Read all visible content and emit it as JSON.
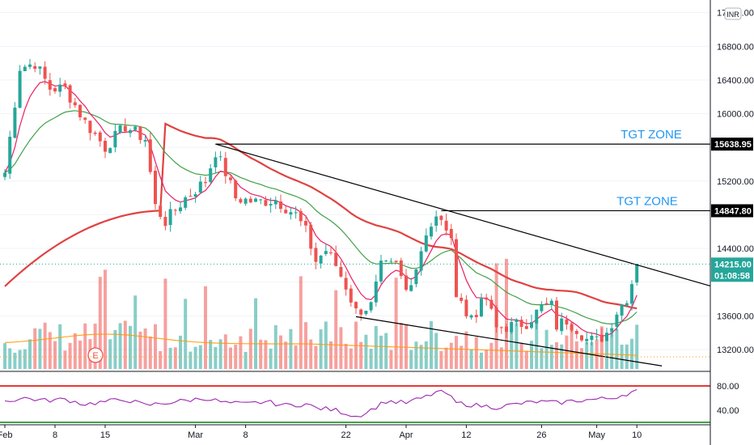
{
  "currency_badge": "INR",
  "chart_data": [
    {
      "type": "candlestick",
      "price_axis": {
        "range": [
          12950,
          17350
        ],
        "ticks": [
          "17200.00",
          "16800.00",
          "16400.00",
          "16000.00",
          "15200.00",
          "14400.00",
          "13600.00",
          "13200.00"
        ]
      },
      "time_axis": {
        "labels": [
          "Feb",
          "8",
          "15",
          "Mar",
          "8",
          "22",
          "Apr",
          "12",
          "26",
          "May",
          "10"
        ]
      },
      "last_price": "14215.00",
      "countdown": "01:08:58",
      "tgt_zones": [
        {
          "label": "TGT ZONE",
          "price": 15638.95,
          "price_label": "15638.95"
        },
        {
          "label": "TGT ZONE",
          "price": 14847.8,
          "price_label": "14847.80"
        }
      ],
      "trendlines": [
        {
          "name": "upper",
          "from": [
            42,
            15638.95
          ],
          "to": [
            140,
            13966
          ]
        },
        {
          "name": "lower",
          "from": [
            70,
            13590
          ],
          "to": [
            131,
            13005
          ]
        }
      ],
      "series": [
        {
          "name": "",
          "color": "#e04242",
          "kind": "sma-long"
        },
        {
          "name": "",
          "color": "#e91e63",
          "kind": "ema-fast"
        },
        {
          "name": "",
          "color": "#43a047",
          "kind": "ema-slow"
        }
      ],
      "volume_marker": "E",
      "close_anchors": [
        [
          0,
          15300
        ],
        [
          3,
          16550
        ],
        [
          6,
          16600
        ],
        [
          9,
          16300
        ],
        [
          12,
          16300
        ],
        [
          16,
          15900
        ],
        [
          20,
          15600
        ],
        [
          24,
          15850
        ],
        [
          28,
          15700
        ],
        [
          30,
          14900
        ],
        [
          32,
          14720
        ],
        [
          36,
          15000
        ],
        [
          40,
          15200
        ],
        [
          42,
          15550
        ],
        [
          44,
          15300
        ],
        [
          46,
          15000
        ],
        [
          50,
          14950
        ],
        [
          54,
          14980
        ],
        [
          58,
          14800
        ],
        [
          60,
          14600
        ],
        [
          62,
          14250
        ],
        [
          64,
          14380
        ],
        [
          66,
          14200
        ],
        [
          68,
          13950
        ],
        [
          70,
          13650
        ],
        [
          73,
          13720
        ],
        [
          75,
          14180
        ],
        [
          78,
          14200
        ],
        [
          80,
          13900
        ],
        [
          82,
          14180
        ],
        [
          84,
          14600
        ],
        [
          86,
          14750
        ],
        [
          88,
          14650
        ],
        [
          89,
          14450
        ],
        [
          90,
          13900
        ],
        [
          91,
          13800
        ],
        [
          92,
          13580
        ],
        [
          94,
          13650
        ],
        [
          96,
          13800
        ],
        [
          98,
          13450
        ],
        [
          101,
          13480
        ],
        [
          104,
          13520
        ],
        [
          107,
          13700
        ],
        [
          109,
          13720
        ],
        [
          110,
          13480
        ],
        [
          112,
          13550
        ],
        [
          114,
          13450
        ],
        [
          116,
          13320
        ],
        [
          118,
          13300
        ],
        [
          120,
          13400
        ],
        [
          122,
          13650
        ],
        [
          124,
          13820
        ],
        [
          125,
          14000
        ],
        [
          126,
          14215
        ]
      ]
    },
    {
      "type": "line",
      "name": "",
      "color": "#9c27b0",
      "range": [
        20,
        100
      ],
      "ticks": [
        "80.00",
        "40.00"
      ],
      "bands": [
        80,
        20
      ],
      "anchors": [
        [
          0,
          55
        ],
        [
          4,
          60
        ],
        [
          8,
          56
        ],
        [
          12,
          58
        ],
        [
          16,
          50
        ],
        [
          20,
          54
        ],
        [
          24,
          58
        ],
        [
          28,
          48
        ],
        [
          32,
          52
        ],
        [
          36,
          56
        ],
        [
          40,
          60
        ],
        [
          44,
          52
        ],
        [
          48,
          50
        ],
        [
          52,
          54
        ],
        [
          56,
          48
        ],
        [
          60,
          50
        ],
        [
          62,
          44
        ],
        [
          66,
          40
        ],
        [
          70,
          30
        ],
        [
          72,
          36
        ],
        [
          76,
          55
        ],
        [
          80,
          52
        ],
        [
          84,
          62
        ],
        [
          86,
          70
        ],
        [
          88,
          68
        ],
        [
          90,
          52
        ],
        [
          94,
          48
        ],
        [
          98,
          45
        ],
        [
          102,
          50
        ],
        [
          106,
          54
        ],
        [
          110,
          52
        ],
        [
          114,
          56
        ],
        [
          118,
          58
        ],
        [
          121,
          60
        ],
        [
          123,
          65
        ],
        [
          125,
          70
        ],
        [
          126,
          74
        ]
      ]
    }
  ]
}
